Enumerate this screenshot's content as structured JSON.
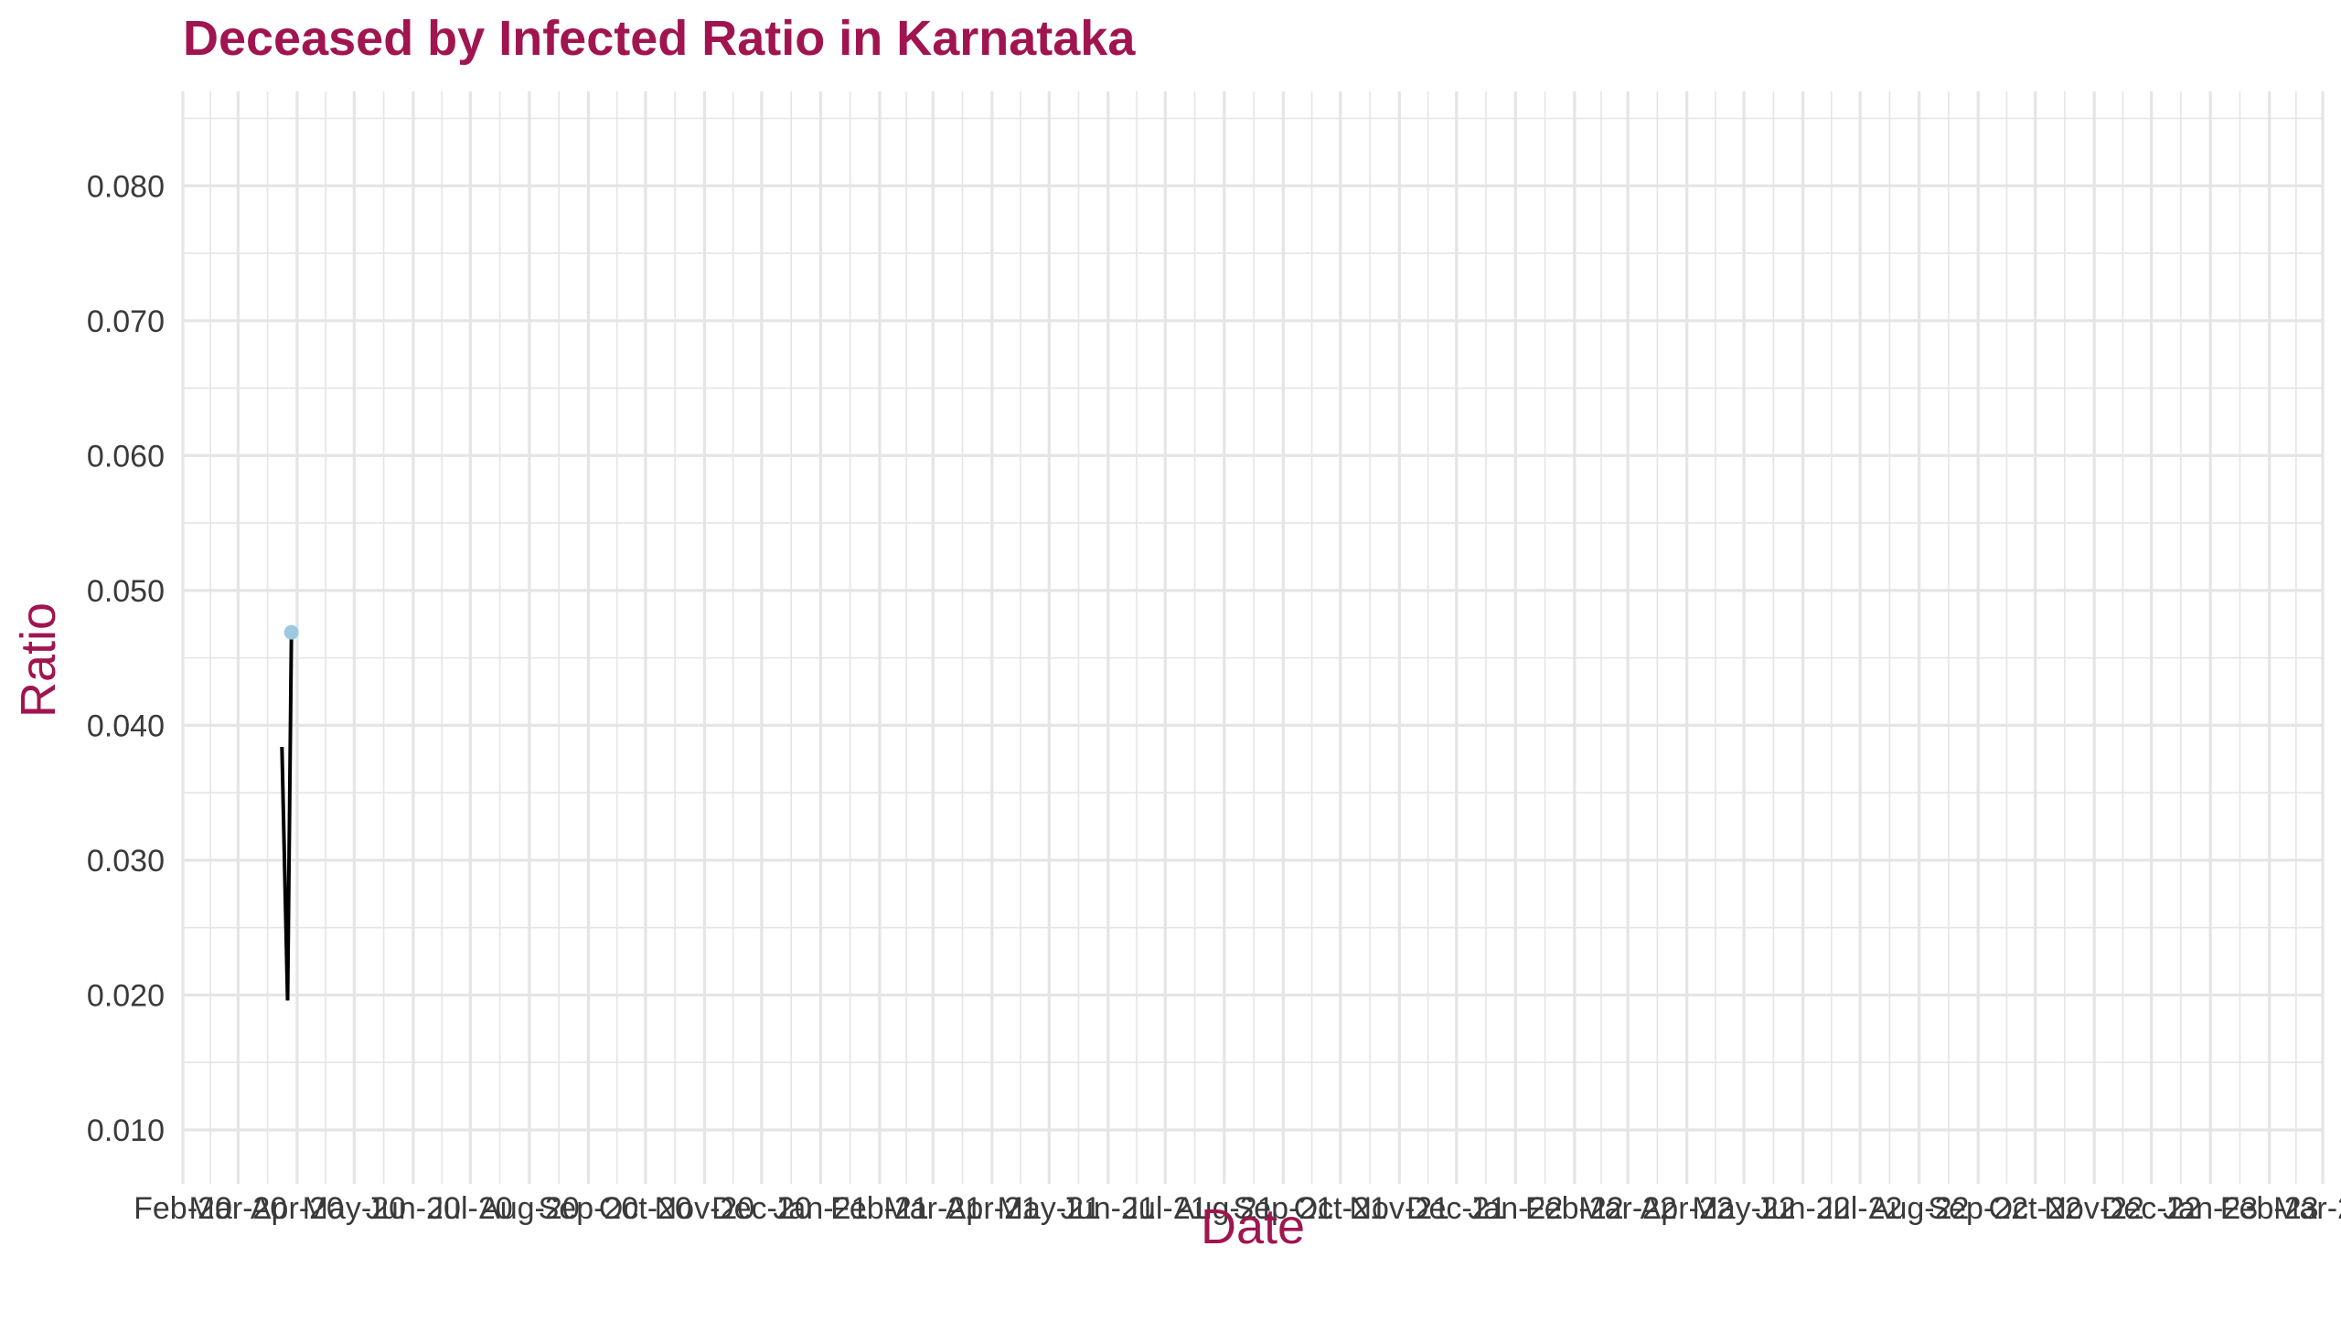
{
  "chart_data": {
    "type": "line",
    "title": "Deceased by Infected Ratio in Karnataka",
    "xlabel": "Date",
    "ylabel": "Ratio",
    "x_tick_labels": [
      "Feb-20",
      "Mar-20",
      "Apr-20",
      "May-20",
      "Jun-20",
      "Jul-20",
      "Aug-20",
      "Sep-20",
      "Oct-20",
      "Nov-20",
      "Dec-20",
      "Jan-21",
      "Feb-21",
      "Mar-21",
      "Apr-21",
      "May-21",
      "Jun-21",
      "Jul-21",
      "Aug-21",
      "Sep-21",
      "Oct-21",
      "Nov-21",
      "Dec-21",
      "Jan-22",
      "Feb-22",
      "Mar-22",
      "Apr-22",
      "May-22",
      "Jun-22",
      "Jul-22",
      "Aug-22",
      "Sep-22",
      "Oct-22",
      "Nov-22",
      "Dec-22",
      "Jan-23",
      "Feb-23",
      "Mar-23"
    ],
    "y_tick_labels": [
      "0.010",
      "0.020",
      "0.030",
      "0.040",
      "0.050",
      "0.060",
      "0.070",
      "0.080"
    ],
    "y_ticks": [
      0.01,
      0.02,
      0.03,
      0.04,
      0.05,
      0.06,
      0.07,
      0.08
    ],
    "xlim": [
      "2020-02-01",
      "2023-03-01"
    ],
    "ylim": [
      0.006,
      0.087
    ],
    "grid": true,
    "series": [
      {
        "x": [
          "2020-03-24",
          "2020-03-27",
          "2020-03-29"
        ],
        "values": [
          0.0384,
          0.0196,
          0.0469
        ]
      }
    ],
    "highlight_point": {
      "x": "2020-03-29",
      "y": 0.0469
    },
    "colors": {
      "title": "#A0154F",
      "line": "#000000",
      "point": "#9CC9DD",
      "grid": "#E5E5E5",
      "tick_text": "#3A3A3A"
    }
  }
}
